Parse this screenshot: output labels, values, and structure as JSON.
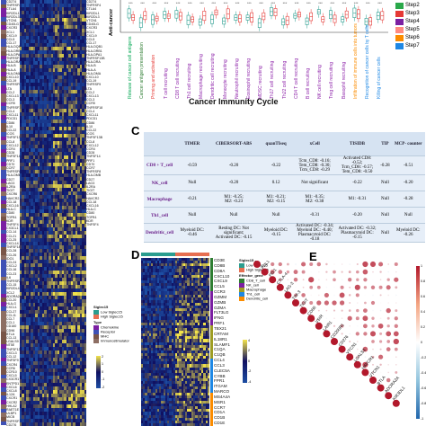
{
  "panel_labels": {
    "c": "C",
    "d": "D",
    "e": "E"
  },
  "panel_b": {
    "ylabel": "Anti-cancer",
    "xlabel": "Cancer Immunity Cycle",
    "steps": [
      {
        "label": "Step2",
        "color": "#2aa84a"
      },
      {
        "label": "Step3",
        "color": "#e53935"
      },
      {
        "label": "Step4",
        "color": "#7b1fa2"
      },
      {
        "label": "Step5",
        "color": "#ff8a80"
      },
      {
        "label": "Step6",
        "color": "#fb8c00"
      },
      {
        "label": "Step7",
        "color": "#1e88e5"
      }
    ],
    "cycle_labels": [
      {
        "text": "Release of cancer cell antigens",
        "color": "#00a651"
      },
      {
        "text": "Cancer antigen presentation",
        "color": "#2e7d32"
      },
      {
        "text": "Priming and activation",
        "color": "#e53935"
      },
      {
        "text": "T cell recruiting",
        "color": "#8e24aa"
      },
      {
        "text": "CD8 T cell recruiting",
        "color": "#8e24aa"
      },
      {
        "text": "Th1 cell recruiting",
        "color": "#8e24aa"
      },
      {
        "text": "Macrophage recruiting",
        "color": "#8e24aa"
      },
      {
        "text": "Dendritic cell recruiting",
        "color": "#8e24aa"
      },
      {
        "text": "Monocyte recruiting",
        "color": "#8e24aa"
      },
      {
        "text": "Neutrophil recruiting",
        "color": "#8e24aa"
      },
      {
        "text": "Eosinophil recruiting",
        "color": "#8e24aa"
      },
      {
        "text": "MDSC recruiting",
        "color": "#8e24aa"
      },
      {
        "text": "Th17 cell recruiting",
        "color": "#8e24aa"
      },
      {
        "text": "Th22 cell recruiting",
        "color": "#8e24aa"
      },
      {
        "text": "CD4 T cell recruiting",
        "color": "#8e24aa"
      },
      {
        "text": "B cell recruiting",
        "color": "#8e24aa"
      },
      {
        "text": "NK cell recruiting",
        "color": "#8e24aa"
      },
      {
        "text": "Treg cell recruiting",
        "color": "#8e24aa"
      },
      {
        "text": "Basophil recruiting",
        "color": "#8e24aa"
      },
      {
        "text": "Infiltration of immune cells into tumors",
        "color": "#fb8c00"
      },
      {
        "text": "Recognition of cancer cells by T cells",
        "color": "#1e88e5"
      },
      {
        "text": "Killing of cancer cells",
        "color": "#1e88e5"
      }
    ]
  },
  "panel_c": {
    "headers": [
      "",
      "TIMER",
      "CIBERSORT-ABS",
      "quanTIseq",
      "xCell",
      "TISIDB",
      "TIP",
      "MCP- counter"
    ],
    "rows": [
      {
        "name": "CD8 + T_cell",
        "cells": [
          "-0.59",
          "-0.20",
          "-0.22",
          "Tcm_CD8: -0.16;\nTem_CD8: -0.30;\nTcm_CD8: -0.29",
          "Activated CD8: -0.52;\nTcm_CD8: -0.57;\nTem_CD8: -0.50",
          "-0.28",
          "-0.51"
        ]
      },
      {
        "name": "NK_cell",
        "cells": [
          "Null",
          "-0.20",
          "0.12",
          "Not significant",
          "-0.22",
          "Null",
          "-0.20"
        ]
      },
      {
        "name": "Macrophage",
        "cells": [
          "-0.21",
          "M1: -0.25;\nM2: -0.23",
          "M1: -0.21;\nM2: -0.15",
          "M1: -0.35;\nM2: -0.38",
          "M1: -0.31",
          "Null",
          "-0.28"
        ]
      },
      {
        "name": "Th1_cell",
        "cells": [
          "Null",
          "Null",
          "Null",
          "-0.31",
          "-0.20",
          "Null",
          "Null"
        ]
      },
      {
        "name": "Dendritic_cell",
        "cells": [
          "Myeloid DC: -0.46",
          "Resting DC: Not significant;\nActivated DC: -0.15",
          "Myeloid DC: -0.15",
          "Activated DC: -0.34;\nMyeloid DC: -0.40;\nPlasmacytoid DC: -0.18",
          "Activated DC: -0.32;\nPlasmacytoid DC: -0.15",
          "Null",
          "Myeloid DC: -0.26"
        ]
      }
    ]
  },
  "panel_a": {
    "genes_left": [
      "CD274",
      "TNFRSF4",
      "CTLA4",
      "KIR2DL1",
      "KIR2DL3",
      "VTCN1",
      "CD40LG",
      "CXCR3",
      "XCL1",
      "CXCL9",
      "CCL5",
      "CCL17",
      "HLA-DQB1",
      "HLA-DRB1",
      "HLA-DPA1",
      "TNFRSF13B",
      "HLA-DRA",
      "HLA-B",
      "HLA-A",
      "HLA-DMA",
      "CXCL10",
      "CCL19",
      "TNFRSF9",
      "LTA",
      "CCL2",
      "CXCL13",
      "CCL3",
      "CCR5",
      "TNFRSF18",
      "CCL4",
      "CXCL11",
      "PDCD1",
      "CD86",
      "IL10",
      "CCL22",
      "ICOS",
      "TNFSF13B",
      "CCL8",
      "CXCL12",
      "CCR4",
      "CD28",
      "TNFSF14",
      "PRF1",
      "CD70",
      "CCR7",
      "TNFRSF8",
      "HLA-DMB",
      "CD27",
      "LAG3",
      "IL2RA",
      "TIGIT",
      "CXCR6",
      "HAVCR2",
      "CCL18",
      "CXCL16",
      "HLA-C",
      "CD80",
      "TGFB1",
      "KDR",
      "TNFSF4",
      "CX3CL1",
      "CCL14",
      "CCL21",
      "CCL25",
      "CXCL14",
      "TNFSF18",
      "CCL28",
      "CCL26",
      "IDO1",
      "CCL24",
      "CXCL2",
      "CCL16",
      "CCL23",
      "IL6",
      "TNFRSF25",
      "CCL15",
      "KIR2DL4",
      "XCL2",
      "ADORA2A",
      "CCL20",
      "HLA-G",
      "CXCL1",
      "CCL27",
      "CCL11",
      "CCL7",
      "CCL1",
      "CD160",
      "CD96",
      "BTLA",
      "CCL13",
      "LGALS9",
      "NT5E",
      "TNFSF13",
      "CXCL3",
      "CCL12",
      "TNFSF9",
      "CXCR4",
      "CCR6",
      "CCR10",
      "CXCL5",
      "CX3CR1",
      "ENTPD1",
      "CXCL6",
      "CXCL8",
      "IL12A",
      "CXCR1",
      "CXCR2",
      "HHLA2",
      "RAET1E",
      "ULBP1",
      "MICB",
      "TNFRSF14",
      "CD276"
    ],
    "legend": {
      "siglec_title": "Siglec15",
      "siglec_items": [
        {
          "label": "Low Siglec15",
          "color": "#2a9d8f"
        },
        {
          "label": "High Siglec15",
          "color": "#e76f51"
        }
      ],
      "type_title": "Type",
      "type_items": [
        {
          "label": "Chemokine",
          "color": "#7b1fa2"
        },
        {
          "label": "Receptor",
          "color": "#3f51b5"
        },
        {
          "label": "MHC",
          "color": "#795548"
        },
        {
          "label": "Immunostimulator",
          "color": "#8d6e63"
        }
      ],
      "scale": [
        "2",
        "1",
        "0",
        "-1",
        "-2"
      ]
    }
  },
  "panel_d": {
    "genes": [
      "CD3E",
      "CD8B",
      "CD8A",
      "CXCL10",
      "CXCL9",
      "CCL5",
      "CCR3",
      "GZMM",
      "GZMB",
      "GZMA",
      "FLT3LG",
      "IFNG",
      "PRF1",
      "TBX21",
      "CRTAM",
      "IL18R1",
      "SLAMF1",
      "C1QA",
      "C1QB",
      "CCL4",
      "CCL3",
      "CLEC5A",
      "CYBB",
      "FPR1",
      "ITGAM",
      "MARCO",
      "MS4A4A",
      "MSR1",
      "CCR7",
      "CD1A",
      "CD1B",
      "CD1E"
    ],
    "genes_right": [
      "C1QB",
      "CRTAM",
      "NCR1",
      "KIR2DL4",
      "KIR3DL1",
      "NCR1",
      "PRF1",
      "KLRC1",
      "CD160",
      "SLAMF1",
      "FCGR3A",
      "FNB1",
      "IFNG",
      "TBX21",
      "KLRB1",
      "IL12RB2",
      "MS4A4A",
      "TLR4",
      "C1QA",
      "C1QC",
      "CLEC5A",
      "CD163",
      "MARCO",
      "SPON2",
      "CCL4",
      "CCL5",
      "SLAMF1"
    ],
    "legend": {
      "siglec_title": "Siglec15",
      "siglec_items": [
        {
          "label": "Low Siglec15",
          "color": "#2a9d8f"
        },
        {
          "label": "High Siglec15",
          "color": "#e76f51"
        }
      ],
      "effector_title": "Effector_gene",
      "effector_items": [
        {
          "label": "CD8_T_cell",
          "color": "#2e7d32"
        },
        {
          "label": "NK_cell",
          "color": "#7b1fa2"
        },
        {
          "label": "Macrophage",
          "color": "#9e9d24"
        },
        {
          "label": "Th1_cell",
          "color": "#1e88e5"
        },
        {
          "label": "Dendritic_cell",
          "color": "#fb8c00"
        }
      ],
      "scale": [
        "4",
        "2",
        "0",
        "-2",
        "-4"
      ]
    }
  },
  "panel_e": {
    "genes": [
      "SIGLEC15",
      "PDL1",
      "PD-1",
      "CTLA-4",
      "LAG-3",
      "TIM-3",
      "TIGIT",
      "CD86",
      "VSIR",
      "LAIR1",
      "CD200R1",
      "CD276",
      "VTCN1",
      "LGALS3",
      "HAVCR1",
      "VTCN1",
      "BTLA",
      "ADORA2A",
      "KIR3DL1"
    ],
    "scale": [
      "1",
      "0.8",
      "0.6",
      "0.4",
      "0.2",
      "0",
      "-0.2",
      "-0.4",
      "-0.6",
      "-0.8",
      "-1"
    ]
  },
  "colors": {
    "heat_high": "#f3e34a",
    "heat_mid": "#101060",
    "heat_low": "#1d4ea3",
    "table_bg": "#e6eef8"
  }
}
